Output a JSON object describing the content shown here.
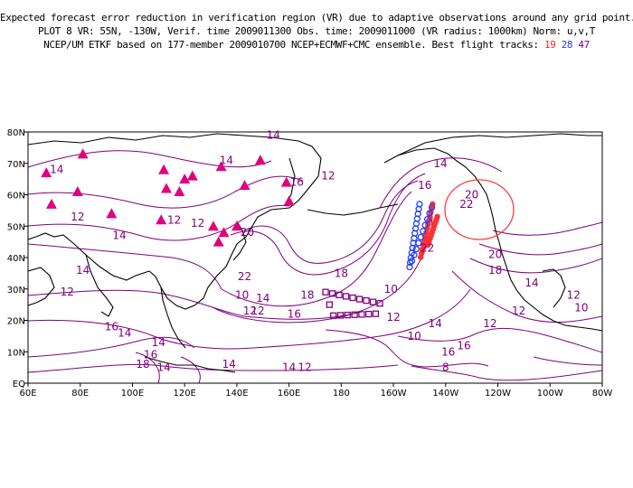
{
  "header": {
    "line1": "Expected forecast error reduction in verification region (VR) due to adaptive observations around any grid point.",
    "line2": "PLOT 8 VR: 55N, -130W, Verif. time 2009011300 Obs. time: 2009011000 (VR radius: 1000km) Norm: u,v,T",
    "line3_prefix": "NCEP/UM ETKF based on 177-member 2009010700 NCEP+ECMWF+CMC ensemble. Best flight tracks:",
    "track_a": "19",
    "track_b": "28",
    "track_c": "47"
  },
  "map": {
    "lon_labels": [
      "60E",
      "80E",
      "100E",
      "120E",
      "140E",
      "160E",
      "180",
      "160W",
      "140W",
      "120W",
      "100W",
      "80W"
    ],
    "lat_labels": [
      "80N",
      "70N",
      "60N",
      "50N",
      "40N",
      "30N",
      "20N",
      "10N",
      "EQ"
    ],
    "contour_labels": [
      "14",
      "14",
      "12",
      "14",
      "14",
      "12",
      "12",
      "14",
      "12",
      "16",
      "20",
      "22",
      "18",
      "18",
      "16",
      "14",
      "12",
      "12",
      "16",
      "14",
      "16",
      "14",
      "18",
      "14",
      "12",
      "10",
      "10",
      "12",
      "14",
      "14",
      "12",
      "10",
      "14",
      "16",
      "18",
      "20",
      "22",
      "16",
      "14",
      "12",
      "16",
      "14",
      "12",
      "10",
      "12",
      "8"
    ],
    "vr_labels": [
      "20",
      "22"
    ],
    "colors": {
      "contour": "#800080",
      "coast": "#000000",
      "verification_region": "#ff4040",
      "track_19": "#ff2020",
      "track_28": "#2040ff",
      "track_47": "#800080",
      "observation_sites": "#e0007f"
    }
  }
}
